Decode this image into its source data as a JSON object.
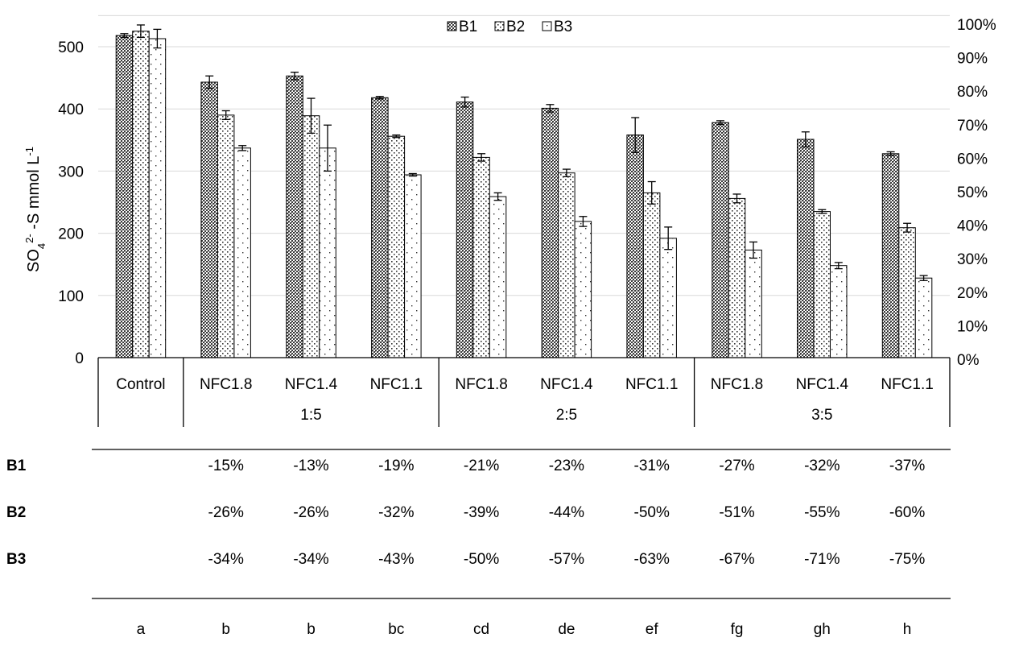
{
  "chart_data": {
    "type": "bar",
    "ylabel_main": "SO",
    "ylabel_sub": "4",
    "ylabel_sup": "2-",
    "ylabel_rest": " -S mmol L",
    "ylabel_sup2": "-1",
    "ylim": [
      0,
      550
    ],
    "y_ticks": [
      "0",
      "100",
      "200",
      "300",
      "400",
      "500"
    ],
    "y2_ticks": [
      "0%",
      "10%",
      "20%",
      "30%",
      "40%",
      "50%",
      "60%",
      "70%",
      "80%",
      "90%",
      "100%"
    ],
    "grid": true,
    "legend_position": "top-center",
    "categories": [
      "Control",
      "NFC1.8",
      "NFC1.4",
      "NFC1.1",
      "NFC1.8",
      "NFC1.4",
      "NFC1.1",
      "NFC1.8",
      "NFC1.4",
      "NFC1.1"
    ],
    "groups": [
      {
        "label": "",
        "span": [
          0,
          0
        ]
      },
      {
        "label": "1:5",
        "span": [
          1,
          3
        ]
      },
      {
        "label": "2:5",
        "span": [
          4,
          6
        ]
      },
      {
        "label": "3:5",
        "span": [
          7,
          9
        ]
      }
    ],
    "series": [
      {
        "name": "B1",
        "pattern": "dense",
        "values": [
          518,
          443,
          453,
          418,
          411,
          401,
          358,
          378,
          351,
          328
        ],
        "errors": [
          3,
          10,
          6,
          2,
          8,
          6,
          28,
          3,
          12,
          3
        ]
      },
      {
        "name": "B2",
        "pattern": "dots",
        "values": [
          525,
          390,
          389,
          356,
          322,
          297,
          265,
          256,
          235,
          209
        ],
        "errors": [
          10,
          7,
          28,
          2,
          6,
          6,
          18,
          7,
          3,
          7
        ]
      },
      {
        "name": "B3",
        "pattern": "sparse",
        "values": [
          513,
          337,
          337,
          294,
          259,
          219,
          192,
          173,
          148,
          128
        ],
        "errors": [
          15,
          4,
          37,
          2,
          6,
          8,
          18,
          13,
          5,
          4
        ]
      }
    ],
    "table": {
      "rows": [
        {
          "label": "B1",
          "cells": [
            "",
            "-15%",
            "-13%",
            "-19%",
            "-21%",
            "-23%",
            "-31%",
            "-27%",
            "-32%",
            "-37%"
          ]
        },
        {
          "label": "B2",
          "cells": [
            "",
            "-26%",
            "-26%",
            "-32%",
            "-39%",
            "-44%",
            "-50%",
            "-51%",
            "-55%",
            "-60%"
          ]
        },
        {
          "label": "B3",
          "cells": [
            "",
            "-34%",
            "-34%",
            "-43%",
            "-50%",
            "-57%",
            "-63%",
            "-67%",
            "-71%",
            "-75%"
          ]
        }
      ],
      "letters": [
        "a",
        "b",
        "b",
        "bc",
        "cd",
        "de",
        "ef",
        "fg",
        "gh",
        "h"
      ]
    }
  }
}
